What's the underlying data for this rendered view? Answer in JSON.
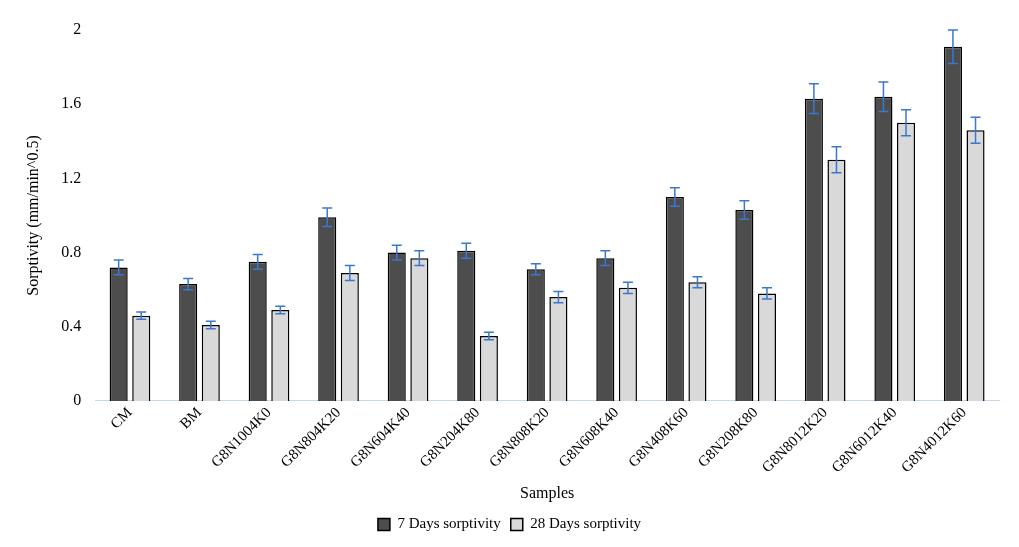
{
  "chart_data": {
    "type": "bar",
    "xlabel": "Samples",
    "ylabel": "Sorptivity (mm/min^0.5)",
    "categories": [
      "CM",
      "BM",
      "G8N1004K0",
      "G8N804K20",
      "G8N604K40",
      "G8N204K80",
      "G8N808K20",
      "G8N608K40",
      "G8N408K60",
      "G8N208K80",
      "G8N8012K20",
      "G8N6012K40",
      "G8N4012K60"
    ],
    "series": [
      {
        "name": "7 Days sorptivity",
        "color": "#4d4d4d",
        "values": [
          0.72,
          0.63,
          0.75,
          0.99,
          0.8,
          0.81,
          0.71,
          0.77,
          1.1,
          1.03,
          1.63,
          1.64,
          1.91
        ],
        "errors": [
          0.04,
          0.03,
          0.04,
          0.05,
          0.04,
          0.04,
          0.03,
          0.04,
          0.05,
          0.05,
          0.08,
          0.08,
          0.09
        ]
      },
      {
        "name": "28 Days sorptivity",
        "color": "#d9d9d9",
        "values": [
          0.46,
          0.41,
          0.49,
          0.69,
          0.77,
          0.35,
          0.56,
          0.61,
          0.64,
          0.58,
          1.3,
          1.5,
          1.46
        ],
        "errors": [
          0.02,
          0.02,
          0.02,
          0.04,
          0.04,
          0.02,
          0.03,
          0.03,
          0.03,
          0.03,
          0.07,
          0.07,
          0.07
        ]
      }
    ],
    "ylim": [
      0,
      2
    ],
    "yticks": [
      0,
      0.4,
      0.8,
      1.2,
      1.6,
      2
    ],
    "grid": false,
    "legend": "bottom"
  }
}
